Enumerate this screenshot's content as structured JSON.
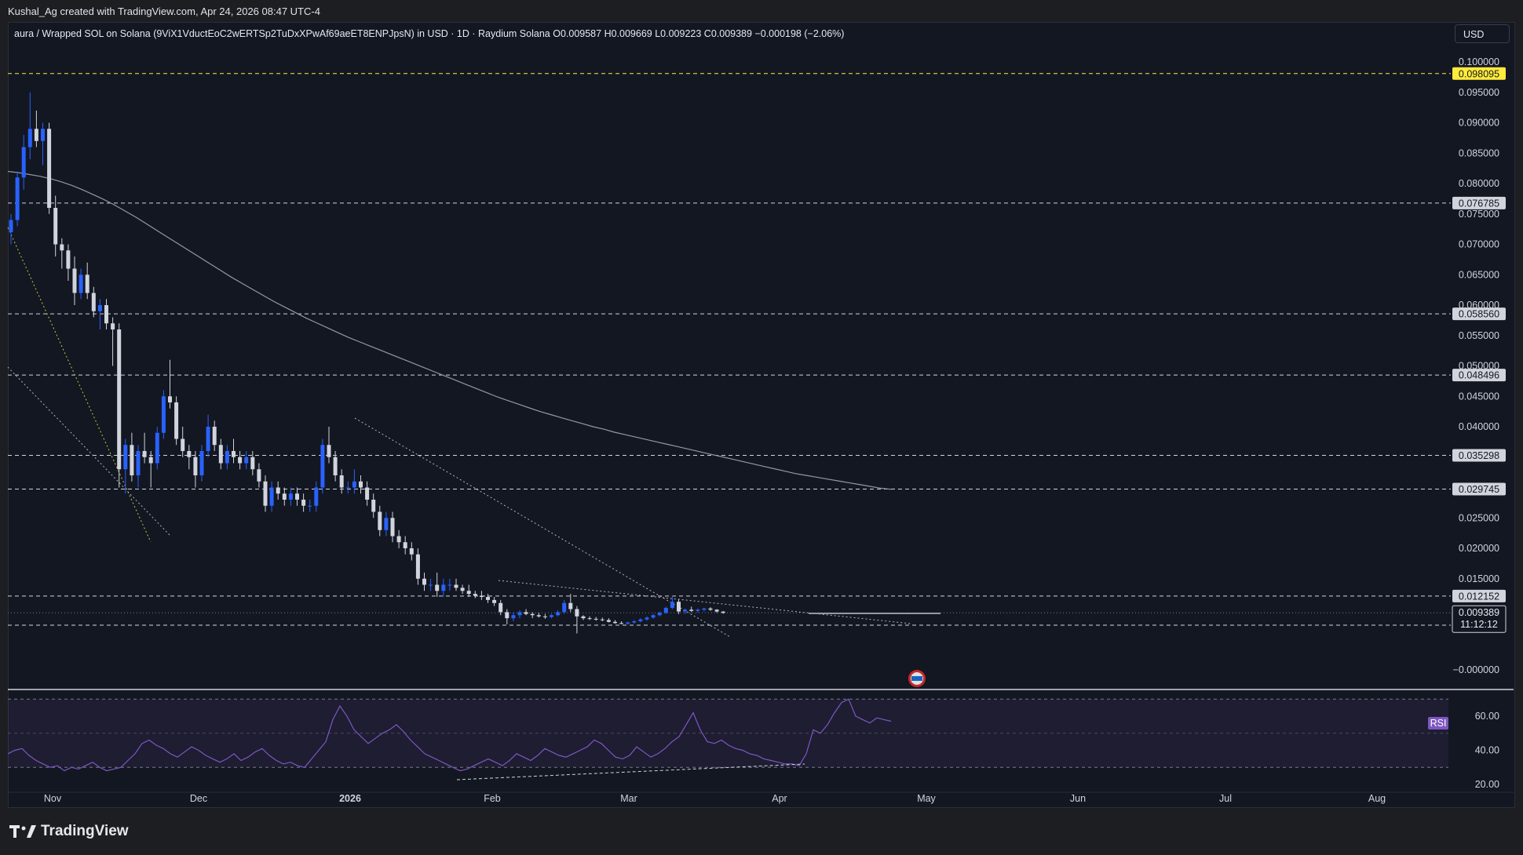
{
  "header": {
    "attribution": "Kushal_Ag created with TradingView.com, Apr 24, 2026 08:47 UTC-4"
  },
  "legend": {
    "symbol": "aura / Wrapped SOL on Solana (9ViX1VductEoC2wERTSp2TuDxXPwAf69aeET8ENPJpsN) in USD · 1D · Raydium Solana",
    "open": "O0.009587",
    "high": "H0.009669",
    "low": "L0.009223",
    "close": "C0.009389",
    "change": "−0.000198 (−2.06%)"
  },
  "currency_button": "USD",
  "brand": "TradingView",
  "colors": {
    "background": "#131722",
    "bull": "#2962ff",
    "bear": "#d1d4dc",
    "rsi_line": "#7e57c2",
    "highlight_level": "#ffeb3b",
    "ma_line": "#9598a1"
  },
  "chart_data": {
    "type": "candlestick",
    "price_axis": {
      "ticks": [
        "0.100000",
        "0.095000",
        "0.090000",
        "0.085000",
        "0.080000",
        "0.075000",
        "0.070000",
        "0.065000",
        "0.060000",
        "0.055000",
        "0.050000",
        "0.045000",
        "0.040000",
        "0.025000",
        "0.020000",
        "0.015000",
        "−0.000000"
      ],
      "range": [
        0,
        0.1
      ]
    },
    "time_axis": {
      "labels": [
        "Nov",
        "Dec",
        "2026",
        "Feb",
        "Mar",
        "Apr",
        "May",
        "Jun",
        "Jul",
        "Aug"
      ],
      "bold": [
        "2026"
      ]
    },
    "horizontal_levels": [
      {
        "price": 0.098095,
        "label": "0.098095",
        "highlight": true
      },
      {
        "price": 0.076785,
        "label": "0.076785"
      },
      {
        "price": 0.05856,
        "label": "0.058560"
      },
      {
        "price": 0.048496,
        "label": "0.048496"
      },
      {
        "price": 0.035298,
        "label": "0.035298"
      },
      {
        "price": 0.029745,
        "label": "0.029745"
      },
      {
        "price": 0.012152,
        "label": "0.012152"
      },
      {
        "price": 0.007347,
        "label": "0.007347"
      }
    ],
    "last_price": {
      "price": 0.009389,
      "label": "0.009389",
      "countdown": "11:12:12"
    },
    "rsi": {
      "label": "RSI",
      "ticks": [
        "60.00",
        "40.00",
        "20.00"
      ],
      "band": [
        30,
        70
      ],
      "values": [
        38,
        40,
        41,
        37,
        34,
        32,
        30,
        31,
        28,
        30,
        29,
        31,
        33,
        30,
        28,
        29,
        30,
        34,
        38,
        44,
        46,
        43,
        41,
        38,
        36,
        39,
        42,
        40,
        37,
        35,
        33,
        35,
        38,
        34,
        36,
        39,
        41,
        37,
        34,
        32,
        33,
        31,
        30,
        35,
        40,
        45,
        58,
        66,
        60,
        52,
        48,
        44,
        47,
        50,
        52,
        55,
        51,
        46,
        42,
        38,
        36,
        34,
        32,
        30,
        28,
        29,
        31,
        33,
        35,
        33,
        31,
        34,
        38,
        36,
        34,
        37,
        41,
        39,
        37,
        36,
        38,
        40,
        42,
        46,
        44,
        40,
        36,
        35,
        37,
        42,
        39,
        36,
        38,
        41,
        45,
        48,
        55,
        62,
        52,
        45,
        44,
        46,
        43,
        41,
        40,
        38,
        37,
        35,
        34,
        33,
        32,
        32,
        31,
        38,
        52,
        50,
        55,
        62,
        68,
        70,
        60,
        58,
        56,
        59,
        58,
        57
      ],
      "x_start": 0,
      "x_end": 116
    },
    "candles": [
      [
        0.072,
        0.075,
        0.07,
        0.074
      ],
      [
        0.074,
        0.082,
        0.073,
        0.081
      ],
      [
        0.081,
        0.088,
        0.079,
        0.086
      ],
      [
        0.086,
        0.095,
        0.084,
        0.089
      ],
      [
        0.089,
        0.092,
        0.086,
        0.087
      ],
      [
        0.087,
        0.09,
        0.083,
        0.089
      ],
      [
        0.089,
        0.09,
        0.075,
        0.076
      ],
      [
        0.076,
        0.078,
        0.068,
        0.07
      ],
      [
        0.07,
        0.071,
        0.066,
        0.069
      ],
      [
        0.069,
        0.07,
        0.064,
        0.066
      ],
      [
        0.066,
        0.068,
        0.06,
        0.062
      ],
      [
        0.062,
        0.066,
        0.061,
        0.065
      ],
      [
        0.065,
        0.067,
        0.061,
        0.062
      ],
      [
        0.062,
        0.063,
        0.058,
        0.059
      ],
      [
        0.059,
        0.061,
        0.056,
        0.06
      ],
      [
        0.06,
        0.061,
        0.056,
        0.057
      ],
      [
        0.057,
        0.058,
        0.05,
        0.056
      ],
      [
        0.056,
        0.057,
        0.03,
        0.033
      ],
      [
        0.033,
        0.038,
        0.029,
        0.037
      ],
      [
        0.037,
        0.039,
        0.031,
        0.032
      ],
      [
        0.032,
        0.037,
        0.03,
        0.036
      ],
      [
        0.036,
        0.039,
        0.034,
        0.035
      ],
      [
        0.035,
        0.036,
        0.03,
        0.034
      ],
      [
        0.034,
        0.04,
        0.033,
        0.039
      ],
      [
        0.039,
        0.046,
        0.038,
        0.045
      ],
      [
        0.045,
        0.051,
        0.043,
        0.044
      ],
      [
        0.044,
        0.045,
        0.037,
        0.038
      ],
      [
        0.038,
        0.04,
        0.035,
        0.036
      ],
      [
        0.036,
        0.037,
        0.033,
        0.035
      ],
      [
        0.035,
        0.036,
        0.03,
        0.032
      ],
      [
        0.032,
        0.037,
        0.031,
        0.036
      ],
      [
        0.036,
        0.042,
        0.035,
        0.04
      ],
      [
        0.04,
        0.041,
        0.036,
        0.037
      ],
      [
        0.037,
        0.038,
        0.033,
        0.034
      ],
      [
        0.034,
        0.037,
        0.033,
        0.036
      ],
      [
        0.036,
        0.038,
        0.034,
        0.035
      ],
      [
        0.035,
        0.036,
        0.033,
        0.034
      ],
      [
        0.034,
        0.036,
        0.033,
        0.035
      ],
      [
        0.035,
        0.036,
        0.032,
        0.033
      ],
      [
        0.033,
        0.034,
        0.03,
        0.031
      ],
      [
        0.031,
        0.032,
        0.026,
        0.027
      ],
      [
        0.027,
        0.031,
        0.026,
        0.03
      ],
      [
        0.03,
        0.031,
        0.028,
        0.029
      ],
      [
        0.029,
        0.03,
        0.027,
        0.028
      ],
      [
        0.028,
        0.03,
        0.027,
        0.029
      ],
      [
        0.029,
        0.03,
        0.027,
        0.028
      ],
      [
        0.028,
        0.029,
        0.026,
        0.027
      ],
      [
        0.027,
        0.028,
        0.026,
        0.027
      ],
      [
        0.027,
        0.031,
        0.026,
        0.03
      ],
      [
        0.03,
        0.038,
        0.029,
        0.037
      ],
      [
        0.037,
        0.04,
        0.034,
        0.035
      ],
      [
        0.035,
        0.036,
        0.031,
        0.032
      ],
      [
        0.032,
        0.033,
        0.029,
        0.03
      ],
      [
        0.03,
        0.031,
        0.029,
        0.03
      ],
      [
        0.03,
        0.033,
        0.029,
        0.031
      ],
      [
        0.031,
        0.032,
        0.029,
        0.03
      ],
      [
        0.03,
        0.031,
        0.027,
        0.028
      ],
      [
        0.028,
        0.029,
        0.025,
        0.026
      ],
      [
        0.026,
        0.027,
        0.022,
        0.023
      ],
      [
        0.023,
        0.026,
        0.022,
        0.025
      ],
      [
        0.025,
        0.026,
        0.021,
        0.022
      ],
      [
        0.022,
        0.023,
        0.02,
        0.021
      ],
      [
        0.021,
        0.022,
        0.019,
        0.02
      ],
      [
        0.02,
        0.021,
        0.018,
        0.019
      ],
      [
        0.019,
        0.02,
        0.014,
        0.015
      ],
      [
        0.015,
        0.016,
        0.013,
        0.014
      ],
      [
        0.014,
        0.015,
        0.013,
        0.014
      ],
      [
        0.014,
        0.016,
        0.012,
        0.013
      ],
      [
        0.013,
        0.015,
        0.012,
        0.014
      ],
      [
        0.014,
        0.015,
        0.013,
        0.014
      ],
      [
        0.014,
        0.015,
        0.013,
        0.0135
      ],
      [
        0.0135,
        0.014,
        0.0125,
        0.013
      ],
      [
        0.013,
        0.014,
        0.012,
        0.0125
      ],
      [
        0.0125,
        0.013,
        0.0118,
        0.0122
      ],
      [
        0.0122,
        0.013,
        0.0115,
        0.012
      ],
      [
        0.012,
        0.0125,
        0.011,
        0.0115
      ],
      [
        0.0115,
        0.012,
        0.0105,
        0.011
      ],
      [
        0.011,
        0.0115,
        0.009,
        0.0095
      ],
      [
        0.0095,
        0.01,
        0.0075,
        0.0085
      ],
      [
        0.0085,
        0.0095,
        0.008,
        0.009
      ],
      [
        0.009,
        0.0098,
        0.0085,
        0.0095
      ],
      [
        0.0095,
        0.01,
        0.009,
        0.0092
      ],
      [
        0.0092,
        0.0095,
        0.0085,
        0.009
      ],
      [
        0.009,
        0.0094,
        0.0086,
        0.0088
      ],
      [
        0.0088,
        0.0092,
        0.0084,
        0.0087
      ],
      [
        0.0087,
        0.0092,
        0.0085,
        0.009
      ],
      [
        0.009,
        0.0098,
        0.0088,
        0.0095
      ],
      [
        0.0095,
        0.0115,
        0.0092,
        0.011
      ],
      [
        0.011,
        0.0125,
        0.0095,
        0.01
      ],
      [
        0.01,
        0.0105,
        0.006,
        0.0088
      ],
      [
        0.0088,
        0.009,
        0.0082,
        0.0085
      ],
      [
        0.0085,
        0.0088,
        0.0082,
        0.0084
      ],
      [
        0.0084,
        0.0087,
        0.0081,
        0.0083
      ],
      [
        0.0083,
        0.0086,
        0.008,
        0.0082
      ],
      [
        0.0082,
        0.0085,
        0.0078,
        0.0079
      ],
      [
        0.0079,
        0.0082,
        0.0076,
        0.0077
      ],
      [
        0.0077,
        0.008,
        0.0075,
        0.0076
      ],
      [
        0.0076,
        0.0079,
        0.0074,
        0.0078
      ],
      [
        0.0078,
        0.0082,
        0.0076,
        0.008
      ],
      [
        0.008,
        0.0085,
        0.0078,
        0.0083
      ],
      [
        0.0083,
        0.0088,
        0.0081,
        0.0086
      ],
      [
        0.0086,
        0.0092,
        0.0084,
        0.009
      ],
      [
        0.009,
        0.0096,
        0.0088,
        0.0094
      ],
      [
        0.0094,
        0.0104,
        0.0092,
        0.0102
      ],
      [
        0.0102,
        0.0122,
        0.01,
        0.0112
      ],
      [
        0.0112,
        0.0116,
        0.0092,
        0.0096
      ],
      [
        0.0096,
        0.0101,
        0.0092,
        0.0099
      ],
      [
        0.0099,
        0.0104,
        0.0095,
        0.0097
      ],
      [
        0.0097,
        0.0101,
        0.0094,
        0.0099
      ],
      [
        0.0099,
        0.0102,
        0.0096,
        0.0101
      ],
      [
        0.0101,
        0.0103,
        0.0097,
        0.0099
      ],
      [
        0.0099,
        0.01,
        0.0094,
        0.0096
      ],
      [
        0.009587,
        0.009669,
        0.009223,
        0.009389
      ]
    ],
    "ma": [
      0.082,
      0.0818,
      0.0815,
      0.0812,
      0.0808,
      0.0803,
      0.0797,
      0.079,
      0.0782,
      0.0774,
      0.0765,
      0.0755,
      0.0745,
      0.0734,
      0.0723,
      0.0712,
      0.0701,
      0.069,
      0.0679,
      0.0668,
      0.0657,
      0.0646,
      0.0636,
      0.0626,
      0.0616,
      0.0606,
      0.0597,
      0.0588,
      0.0579,
      0.0571,
      0.0563,
      0.0555,
      0.0547,
      0.054,
      0.0533,
      0.0526,
      0.0519,
      0.0512,
      0.0505,
      0.0498,
      0.0491,
      0.0484,
      0.0477,
      0.047,
      0.0463,
      0.0456,
      0.0449,
      0.0443,
      0.0437,
      0.0431,
      0.0425,
      0.042,
      0.0415,
      0.041,
      0.0405,
      0.04,
      0.0396,
      0.0391,
      0.0387,
      0.0383,
      0.0379,
      0.0375,
      0.0371,
      0.0367,
      0.0363,
      0.0359,
      0.0355,
      0.0351,
      0.0347,
      0.0343,
      0.0339,
      0.0335,
      0.0331,
      0.0327,
      0.0323,
      0.032,
      0.0317,
      0.0314,
      0.0311,
      0.0308,
      0.0305,
      0.0302,
      0.0299,
      0.0297
    ]
  }
}
